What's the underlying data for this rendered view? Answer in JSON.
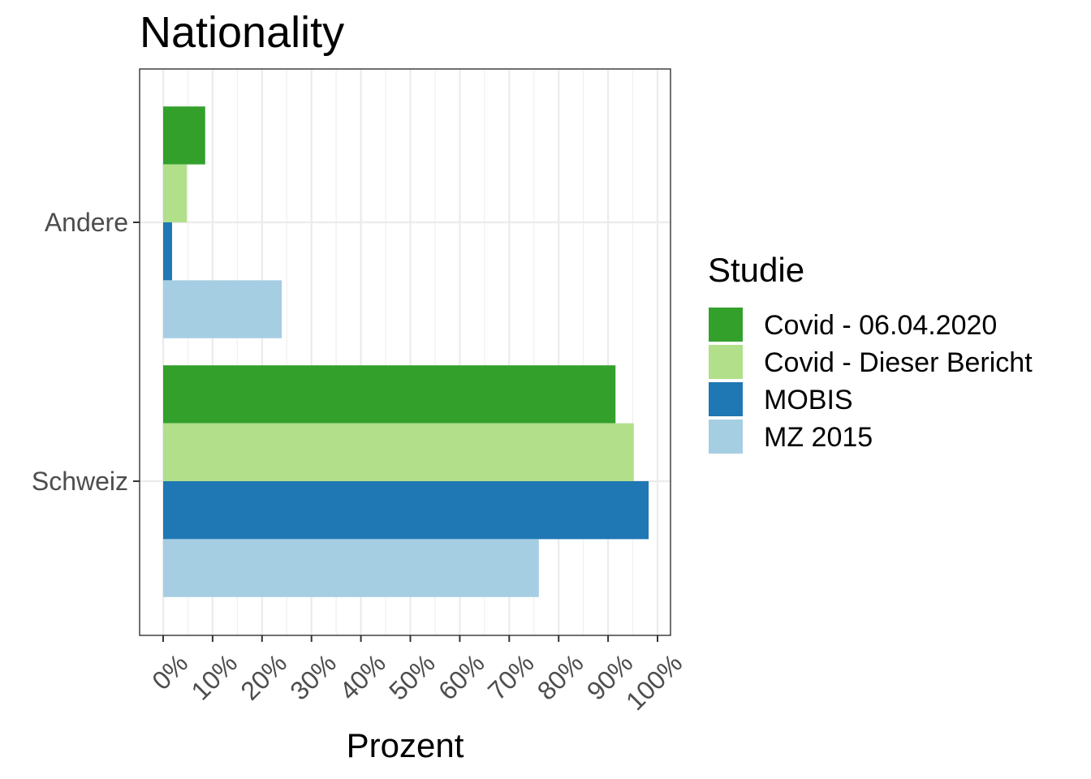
{
  "chart_data": {
    "type": "bar",
    "orientation": "horizontal",
    "title": "Nationality",
    "xlabel": "Prozent",
    "ylabel": "",
    "categories": [
      "Andere",
      "Schweiz"
    ],
    "xlim": [
      -0.05,
      1.02
    ],
    "x_ticks": [
      0,
      0.1,
      0.2,
      0.3,
      0.4,
      0.5,
      0.6,
      0.7,
      0.8,
      0.9,
      1.0
    ],
    "x_tick_labels": [
      "0%",
      "10%",
      "20%",
      "30%",
      "40%",
      "50%",
      "60%",
      "70%",
      "80%",
      "90%",
      "100%"
    ],
    "legend_title": "Studie",
    "legend_position": "right",
    "grid": true,
    "series": [
      {
        "name": "Covid - 06.04.2020",
        "color": "#33a02c",
        "values": [
          0.085,
          0.915
        ]
      },
      {
        "name": "Covid - Dieser Bericht",
        "color": "#b2df8a",
        "values": [
          0.048,
          0.952
        ]
      },
      {
        "name": "MOBIS",
        "color": "#1f78b4",
        "values": [
          0.018,
          0.982
        ]
      },
      {
        "name": "MZ 2015",
        "color": "#a6cee3",
        "values": [
          0.24,
          0.76
        ]
      }
    ]
  }
}
